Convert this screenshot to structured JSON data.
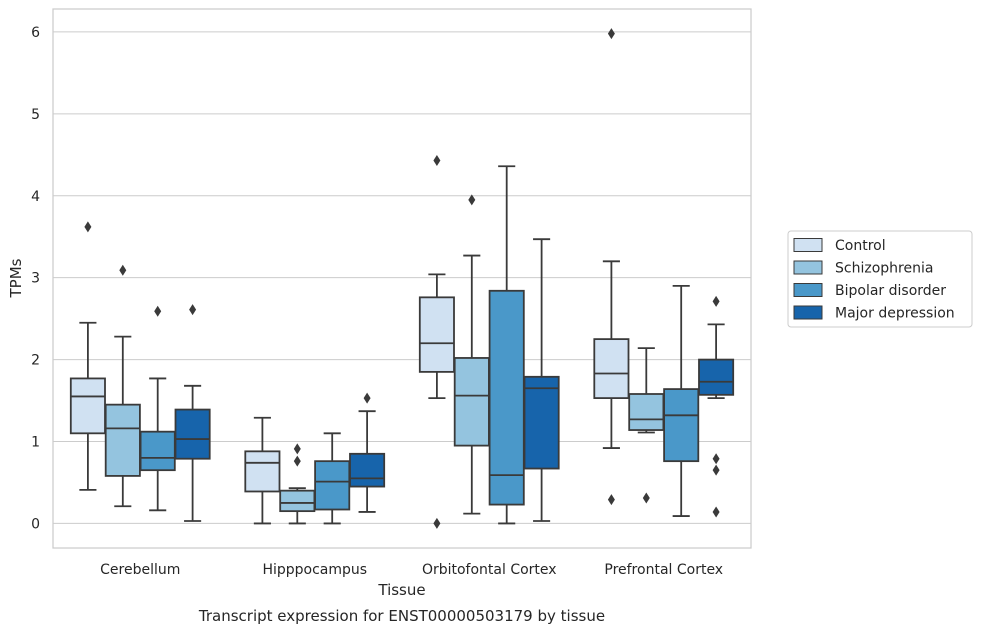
{
  "caption": "Transcript expression for ENST00000503179 by tissue",
  "colors": {
    "Control": "#d0e1f2",
    "Schizophrenia": "#94c4df",
    "Bipolar disorder": "#4a98c9",
    "Major depression": "#1764ab",
    "line": "#3a3a3a",
    "grid": "#cccccc",
    "frame": "#cccccc"
  },
  "chart_data": {
    "type": "box",
    "xlabel": "Tissue",
    "ylabel": "TPMs",
    "ylim": [
      -0.3,
      6.28
    ],
    "yticks": [
      0,
      1,
      2,
      3,
      4,
      5,
      6
    ],
    "grid": true,
    "legend_position": "right",
    "categories": [
      "Cerebellum",
      "Hipppocampus",
      "Orbitofontal Cortex",
      "Prefrontal Cortex"
    ],
    "series": [
      {
        "name": "Control",
        "boxes": [
          {
            "whislo": 0.41,
            "q1": 1.1,
            "med": 1.55,
            "q3": 1.77,
            "whishi": 2.45,
            "fliers": [
              3.62
            ]
          },
          {
            "whislo": 0.0,
            "q1": 0.39,
            "med": 0.74,
            "q3": 0.88,
            "whishi": 1.29,
            "fliers": []
          },
          {
            "whislo": 1.53,
            "q1": 1.85,
            "med": 2.2,
            "q3": 2.76,
            "whishi": 3.04,
            "fliers": [
              4.43,
              0.0
            ]
          },
          {
            "whislo": 0.92,
            "q1": 1.53,
            "med": 1.83,
            "q3": 2.25,
            "whishi": 3.2,
            "fliers": [
              5.98,
              0.29
            ]
          }
        ]
      },
      {
        "name": "Schizophrenia",
        "boxes": [
          {
            "whislo": 0.21,
            "q1": 0.58,
            "med": 1.16,
            "q3": 1.45,
            "whishi": 2.28,
            "fliers": [
              3.09
            ]
          },
          {
            "whislo": 0.0,
            "q1": 0.15,
            "med": 0.25,
            "q3": 0.4,
            "whishi": 0.43,
            "fliers": [
              0.91,
              0.76
            ]
          },
          {
            "whislo": 0.12,
            "q1": 0.95,
            "med": 1.56,
            "q3": 2.02,
            "whishi": 3.27,
            "fliers": [
              3.95
            ]
          },
          {
            "whislo": 1.11,
            "q1": 1.14,
            "med": 1.27,
            "q3": 1.58,
            "whishi": 2.14,
            "fliers": [
              0.31
            ]
          }
        ]
      },
      {
        "name": "Bipolar disorder",
        "boxes": [
          {
            "whislo": 0.16,
            "q1": 0.65,
            "med": 0.8,
            "q3": 1.12,
            "whishi": 1.77,
            "fliers": [
              2.59
            ]
          },
          {
            "whislo": 0.0,
            "q1": 0.17,
            "med": 0.51,
            "q3": 0.76,
            "whishi": 1.1,
            "fliers": []
          },
          {
            "whislo": 0.0,
            "q1": 0.23,
            "med": 0.59,
            "q3": 2.84,
            "whishi": 4.36,
            "fliers": []
          },
          {
            "whislo": 0.09,
            "q1": 0.76,
            "med": 1.32,
            "q3": 1.64,
            "whishi": 2.9,
            "fliers": []
          }
        ]
      },
      {
        "name": "Major depression",
        "boxes": [
          {
            "whislo": 0.03,
            "q1": 0.79,
            "med": 1.03,
            "q3": 1.39,
            "whishi": 1.68,
            "fliers": [
              2.61
            ]
          },
          {
            "whislo": 0.14,
            "q1": 0.45,
            "med": 0.55,
            "q3": 0.85,
            "whishi": 1.37,
            "fliers": [
              1.53
            ]
          },
          {
            "whislo": 0.03,
            "q1": 0.67,
            "med": 1.65,
            "q3": 1.79,
            "whishi": 3.47,
            "fliers": []
          },
          {
            "whislo": 1.53,
            "q1": 1.57,
            "med": 1.73,
            "q3": 2.0,
            "whishi": 2.43,
            "fliers": [
              2.71,
              0.79,
              0.65,
              0.14
            ]
          }
        ]
      }
    ]
  }
}
